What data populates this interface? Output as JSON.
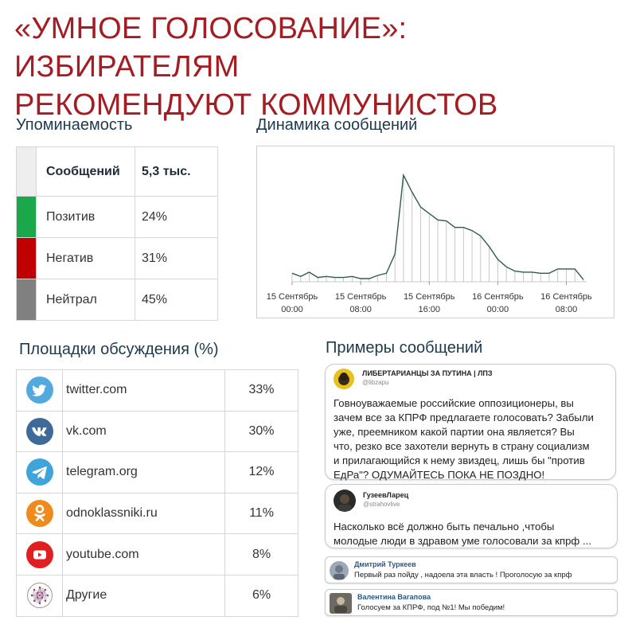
{
  "title_line1": "«УМНОЕ ГОЛОСОВАНИЕ»: ИЗБИРАТЕЛЯМ",
  "title_line2": "РЕКОМЕНДУЮТ КОММУНИСТОВ",
  "mention": {
    "heading": "Упоминаемость",
    "rows": [
      {
        "label": "Сообщений",
        "value": "5,3 тыс.",
        "color": "#eeeeee"
      },
      {
        "label": "Позитив",
        "value": "24%",
        "color": "#1aa84a"
      },
      {
        "label": "Негатив",
        "value": "31%",
        "color": "#c00000"
      },
      {
        "label": "Нейтрал",
        "value": "45%",
        "color": "#808080"
      }
    ]
  },
  "dynamics": {
    "heading": "Динамика сообщений"
  },
  "chart_data": {
    "type": "area",
    "title": "Динамика сообщений",
    "x_tick_labels": [
      [
        "15 Сентябрь",
        "00:00"
      ],
      [
        "15 Сентябрь",
        "08:00"
      ],
      [
        "15 Сентябрь",
        "16:00"
      ],
      [
        "16 Сентябрь",
        "00:00"
      ],
      [
        "16 Сентябрь",
        "08:00"
      ]
    ],
    "x_ticks_hours": [
      0,
      8,
      16,
      24,
      32
    ],
    "x_range_hours": [
      0,
      34
    ],
    "y_range": [
      0,
      100
    ],
    "grid": false,
    "line_color": "#2f5b52",
    "series": [
      {
        "values": [
          [
            0,
            8
          ],
          [
            1,
            5
          ],
          [
            2,
            9
          ],
          [
            3,
            4
          ],
          [
            4,
            5
          ],
          [
            5,
            4
          ],
          [
            6,
            4
          ],
          [
            7,
            5
          ],
          [
            8,
            3
          ],
          [
            9,
            3
          ],
          [
            10,
            6
          ],
          [
            11,
            8
          ],
          [
            12,
            26
          ],
          [
            13,
            100
          ],
          [
            14,
            84
          ],
          [
            15,
            70
          ],
          [
            16,
            64
          ],
          [
            17,
            58
          ],
          [
            18,
            57
          ],
          [
            19,
            51
          ],
          [
            20,
            51
          ],
          [
            21,
            48
          ],
          [
            22,
            43
          ],
          [
            23,
            33
          ],
          [
            24,
            21
          ],
          [
            25,
            14
          ],
          [
            26,
            10
          ],
          [
            27,
            9
          ],
          [
            28,
            9
          ],
          [
            29,
            8
          ],
          [
            30,
            8
          ],
          [
            31,
            12
          ],
          [
            32,
            12
          ],
          [
            33,
            12
          ],
          [
            34,
            2
          ]
        ]
      }
    ]
  },
  "platforms": {
    "heading": "Площадки обсуждения (%)",
    "rows": [
      {
        "name": "twitter.com",
        "pct": "33%",
        "icon": "twitter-icon",
        "color": "#52a9dd"
      },
      {
        "name": "vk.com",
        "pct": "30%",
        "icon": "vk-icon",
        "color": "#3d6a99"
      },
      {
        "name": "telegram.org",
        "pct": "12%",
        "icon": "telegram-icon",
        "color": "#3ea4d9"
      },
      {
        "name": "odnoklassniki.ru",
        "pct": "11%",
        "icon": "odnoklassniki-icon",
        "color": "#f08a1d"
      },
      {
        "name": "youtube.com",
        "pct": "8%",
        "icon": "youtube-icon",
        "color": "#e02020"
      },
      {
        "name": "Другие",
        "pct": "6%",
        "icon": "network-icon",
        "color": "#8a5ca8"
      }
    ]
  },
  "examples": {
    "heading": "Примеры сообщений",
    "cards": [
      {
        "author": "ЛИБЕРТАРИАНЦЫ ЗА ПУТИНА | ЛПЗ",
        "handle": "@libzapu",
        "text_lines": [
          "Говноуважаемые российские оппозиционеры, вы",
          "зачем все за КПРФ предлагаете голосовать? Забыли",
          "уже, преемником какой партии она является? Вы",
          "что, резко все захотели вернуть в страну социализм",
          "и прилагающийся к нему звиздец, лишь бы \"против",
          "ЕдРа\"? ОДУМАЙТЕСЬ ПОКА НЕ ПОЗДНО!"
        ]
      },
      {
        "author": "ГузеевЛарец",
        "handle": "@strahovlive",
        "text_lines": [
          "Насколько всё должно быть печально ,чтобы",
          "молодые люди в здравом уме голосовали за кпрф ..."
        ]
      },
      {
        "author": "Дмитрий Туркеев",
        "text_lines": [
          "Первый раз пойду , надоела эта власть ! Проголосую за кпрф"
        ]
      },
      {
        "author": "Валентина Вагапова",
        "text_lines": [
          "Голосуем за КПРФ, под №1! Мы победим!"
        ]
      }
    ]
  }
}
